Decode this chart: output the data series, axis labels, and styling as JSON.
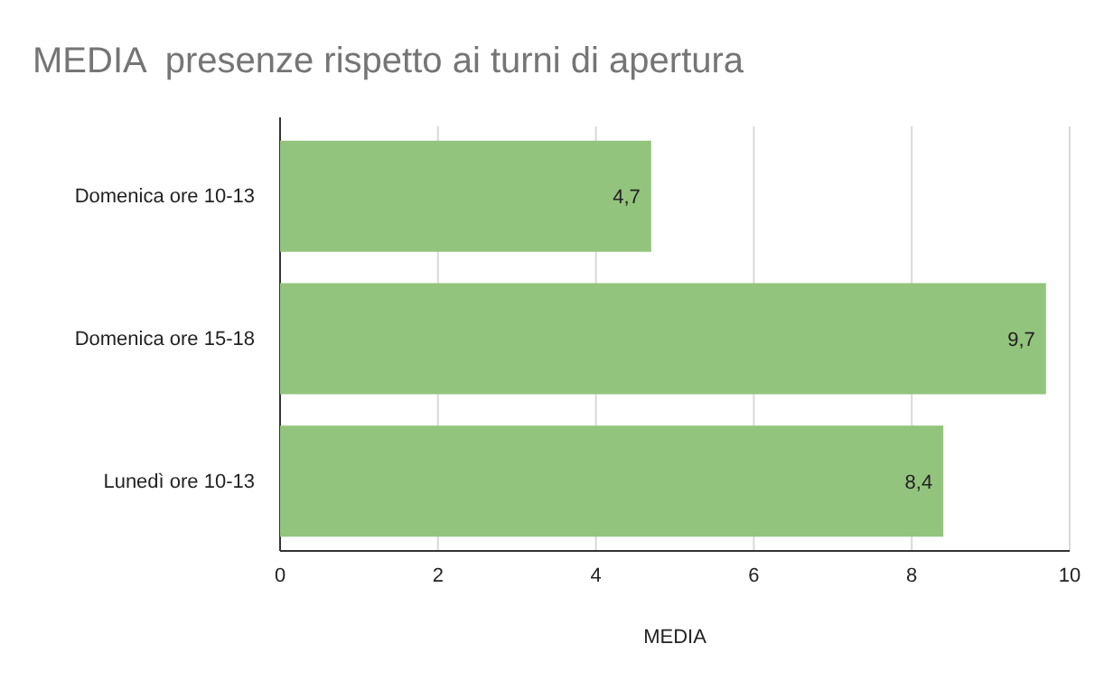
{
  "chart_data": {
    "type": "bar",
    "orientation": "horizontal",
    "title": "MEDIA  presenze rispetto ai turni di apertura",
    "xlabel": "MEDIA",
    "categories": [
      "Domenica ore 10-13",
      "Domenica ore 15-18",
      "Lunedì ore 10-13"
    ],
    "values": [
      4.7,
      9.7,
      8.4
    ],
    "color": "#93c47d",
    "data_labels": true,
    "value_labels": [
      "4,7",
      "9,7",
      "8,4"
    ],
    "xlim": [
      0,
      10
    ],
    "xticks": [
      0,
      2,
      4,
      6,
      8,
      10
    ],
    "grid": "x"
  }
}
